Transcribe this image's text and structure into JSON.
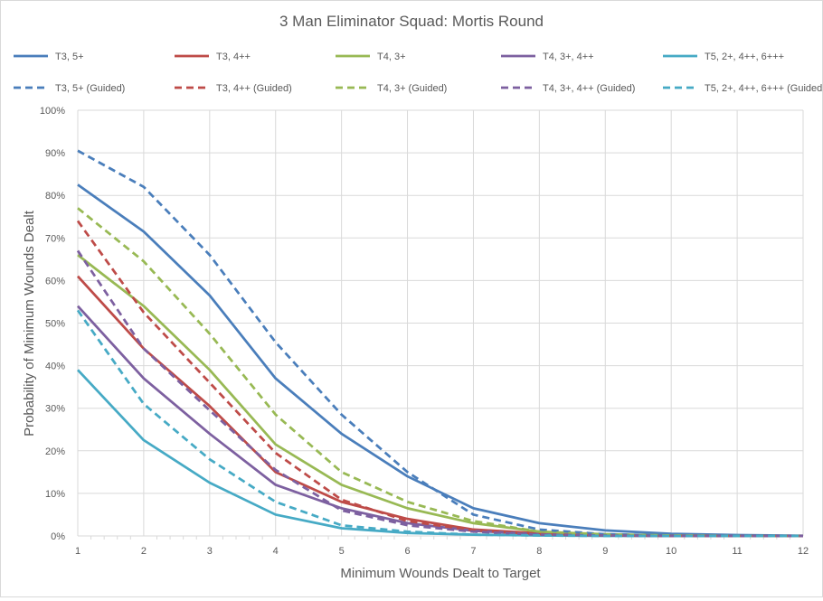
{
  "chart_data": {
    "type": "line",
    "title": "3 Man Eliminator Squad: Mortis Round",
    "xlabel": "Minimum Wounds Dealt  to Target",
    "ylabel": "Probability of Minimum Wounds Dealt",
    "x": [
      1,
      2,
      3,
      4,
      5,
      6,
      7,
      8,
      9,
      10,
      11,
      12
    ],
    "xticks": [
      "1",
      "2",
      "3",
      "4",
      "5",
      "6",
      "7",
      "8",
      "9",
      "10",
      "11",
      "12"
    ],
    "ylim": [
      0,
      100
    ],
    "yticks": [
      "0%",
      "10%",
      "20%",
      "30%",
      "40%",
      "50%",
      "60%",
      "70%",
      "80%",
      "90%",
      "100%"
    ],
    "grid": true,
    "legend": "top",
    "series": [
      {
        "name": "T3, 5+",
        "color": "#4a7ebb",
        "dashed": false,
        "values": [
          82.5,
          71.5,
          56.5,
          37,
          24,
          14,
          6.5,
          3,
          1.3,
          0.5,
          0.2,
          0.05
        ]
      },
      {
        "name": "T3, 4++",
        "color": "#be4b48",
        "dashed": false,
        "values": [
          61,
          44,
          30.5,
          15,
          8,
          4,
          1.5,
          0.6,
          0.2,
          0.1,
          0,
          0
        ]
      },
      {
        "name": "T4, 3+",
        "color": "#98b954",
        "dashed": false,
        "values": [
          66,
          54,
          39,
          21.5,
          12,
          6.5,
          3,
          1,
          0.4,
          0.1,
          0,
          0
        ]
      },
      {
        "name": "T4, 3+, 4++",
        "color": "#7d60a0",
        "dashed": false,
        "values": [
          54,
          37,
          24,
          12,
          6.5,
          3,
          1.2,
          0.4,
          0.1,
          0,
          0,
          0
        ]
      },
      {
        "name": "T5, 2+, 4++, 6+++",
        "color": "#46aac5",
        "dashed": false,
        "values": [
          39,
          22.5,
          12.5,
          5,
          1.8,
          0.7,
          0.3,
          0.1,
          0,
          0,
          0,
          0
        ]
      },
      {
        "name": "T3, 5+ (Guided)",
        "color": "#4a7ebb",
        "dashed": true,
        "values": [
          90.5,
          82,
          66,
          45.5,
          28.5,
          15,
          5,
          1.5,
          0.4,
          0.1,
          0,
          0
        ]
      },
      {
        "name": "T3, 4++ (Guided)",
        "color": "#be4b48",
        "dashed": true,
        "values": [
          74,
          52.5,
          36,
          19.5,
          8.5,
          3.5,
          1.3,
          0.4,
          0.1,
          0,
          0,
          0
        ]
      },
      {
        "name": "T4, 3+ (Guided)",
        "color": "#98b954",
        "dashed": true,
        "values": [
          77,
          64.5,
          47.5,
          28.5,
          15,
          8,
          3.5,
          1,
          0.3,
          0.1,
          0,
          0
        ]
      },
      {
        "name": "T4, 3+, 4++ (Guided)",
        "color": "#7d60a0",
        "dashed": true,
        "values": [
          67,
          44,
          29.5,
          15.5,
          6,
          2.5,
          1,
          0.3,
          0.1,
          0,
          0,
          0
        ]
      },
      {
        "name": "T5, 2+, 4++, 6+++ (Guided)",
        "color": "#46aac5",
        "dashed": true,
        "values": [
          53,
          31,
          18,
          8,
          2.5,
          1,
          0.3,
          0.1,
          0,
          0,
          0,
          0
        ]
      }
    ]
  }
}
